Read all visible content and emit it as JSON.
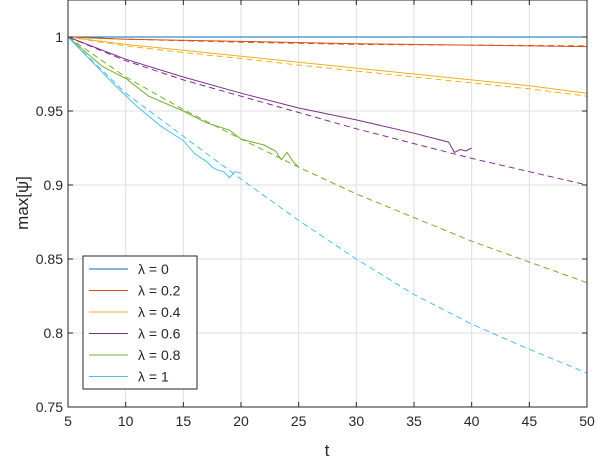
{
  "chart_data": {
    "type": "line",
    "xlabel": "t",
    "ylabel": "max[ψ]",
    "xlim": [
      5,
      50
    ],
    "ylim": [
      0.75,
      1.025
    ],
    "xticks": [
      5,
      10,
      15,
      20,
      25,
      30,
      35,
      40,
      45,
      50
    ],
    "yticks": [
      0.75,
      0.8,
      0.85,
      0.9,
      0.95,
      1
    ],
    "xtick_labels": [
      "5",
      "10",
      "15",
      "20",
      "25",
      "30",
      "35",
      "40",
      "45",
      "50"
    ],
    "ytick_labels": [
      "0.75",
      "0.8",
      "0.85",
      "0.9",
      "0.95",
      "1"
    ],
    "grid": true,
    "legend_position": "bottom-left",
    "series": [
      {
        "name": "λ = 0",
        "color": "#0072BD",
        "solid": {
          "x": [
            5,
            50
          ],
          "y": [
            1.0,
            1.0
          ]
        },
        "dashed": {
          "x": [
            5,
            50
          ],
          "y": [
            1.0,
            1.0
          ]
        }
      },
      {
        "name": "λ = 0.2",
        "color": "#D95319",
        "solid": {
          "x": [
            5,
            10,
            20,
            30,
            40,
            50
          ],
          "y": [
            1.0,
            0.9985,
            0.997,
            0.9955,
            0.9945,
            0.9935
          ]
        },
        "dashed": {
          "x": [
            5,
            10,
            20,
            30,
            40,
            50
          ],
          "y": [
            1.0,
            0.9985,
            0.9965,
            0.995,
            0.9945,
            0.994
          ]
        }
      },
      {
        "name": "λ = 0.4",
        "color": "#EDB120",
        "solid": {
          "x": [
            5,
            10,
            15,
            20,
            25,
            30,
            35,
            40,
            45,
            50
          ],
          "y": [
            1.0,
            0.995,
            0.991,
            0.987,
            0.983,
            0.979,
            0.975,
            0.971,
            0.967,
            0.962
          ]
        },
        "dashed": {
          "x": [
            5,
            10,
            15,
            20,
            25,
            30,
            35,
            40,
            45,
            50
          ],
          "y": [
            1.0,
            0.994,
            0.9895,
            0.9855,
            0.981,
            0.977,
            0.973,
            0.969,
            0.965,
            0.96
          ]
        }
      },
      {
        "name": "λ = 0.6",
        "color": "#7E2F8E",
        "solid": {
          "x": [
            5,
            10,
            15,
            20,
            25,
            30,
            35,
            37,
            38,
            38.5,
            39,
            39.5,
            40
          ],
          "y": [
            1.0,
            0.985,
            0.973,
            0.962,
            0.952,
            0.944,
            0.935,
            0.931,
            0.929,
            0.922,
            0.924,
            0.923,
            0.925
          ]
        },
        "dashed": {
          "x": [
            5,
            10,
            15,
            20,
            25,
            30,
            35,
            40,
            45,
            50
          ],
          "y": [
            1.0,
            0.984,
            0.971,
            0.96,
            0.949,
            0.938,
            0.928,
            0.918,
            0.909,
            0.9
          ]
        }
      },
      {
        "name": "λ = 0.8",
        "color": "#77AC30",
        "solid": {
          "x": [
            5,
            8,
            10,
            12,
            15,
            17,
            19,
            20,
            21,
            22,
            23,
            23.5,
            24,
            24.5,
            25
          ],
          "y": [
            1.0,
            0.98,
            0.972,
            0.96,
            0.95,
            0.942,
            0.937,
            0.931,
            0.929,
            0.927,
            0.923,
            0.917,
            0.922,
            0.916,
            0.912
          ]
        },
        "dashed": {
          "x": [
            5,
            10,
            15,
            20,
            25,
            30,
            35,
            40,
            45,
            50
          ],
          "y": [
            1.0,
            0.973,
            0.951,
            0.931,
            0.912,
            0.894,
            0.878,
            0.862,
            0.848,
            0.834
          ]
        }
      },
      {
        "name": "λ = 1",
        "color": "#4DBEEE",
        "solid": {
          "x": [
            5,
            7,
            9,
            11,
            13,
            15,
            16,
            17,
            17.5,
            18,
            18.5,
            19,
            19.5,
            20
          ],
          "y": [
            1.0,
            0.984,
            0.968,
            0.953,
            0.94,
            0.93,
            0.921,
            0.916,
            0.912,
            0.91,
            0.909,
            0.905,
            0.909,
            0.908
          ]
        },
        "dashed": {
          "x": [
            5,
            10,
            15,
            20,
            25,
            30,
            35,
            40,
            45,
            50
          ],
          "y": [
            1.0,
            0.962,
            0.933,
            0.904,
            0.876,
            0.85,
            0.826,
            0.806,
            0.789,
            0.773
          ]
        }
      }
    ]
  }
}
